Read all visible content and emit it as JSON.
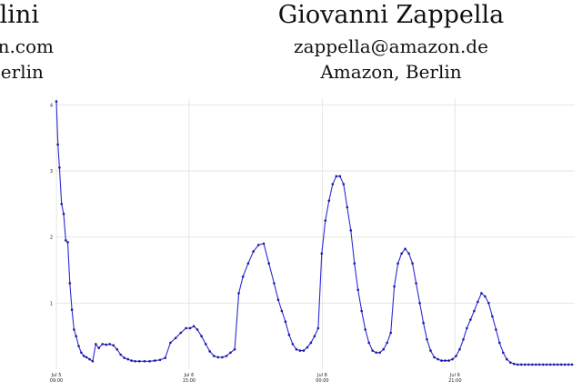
{
  "authors": [
    {
      "name": "llini",
      "email": "zon.com",
      "affiliation": "Berlin"
    },
    {
      "name": "Giovanni Zappella",
      "email": "zappella@amazon.de",
      "affiliation": "Amazon, Berlin"
    }
  ],
  "chart_data": {
    "type": "line",
    "title": "",
    "xlabel": "",
    "ylabel": "",
    "line_color": "#2b2bd6",
    "marker_color": "#1a1aa0",
    "grid": true,
    "ylim": [
      0,
      4.1
    ],
    "xlim": [
      0,
      100
    ],
    "yticks": [
      1,
      2,
      3,
      4
    ],
    "xticks": [
      {
        "x": 0,
        "line1": "Jul 5",
        "line2": "09:00"
      },
      {
        "x": 25.6,
        "line1": "Jul 6",
        "line2": "15:00"
      },
      {
        "x": 51.3,
        "line1": "Jul 8",
        "line2": "00:00"
      },
      {
        "x": 76.9,
        "line1": "Jul 9",
        "line2": "21:00"
      }
    ],
    "series": [
      {
        "x": [
          0.0,
          0.3,
          0.6,
          1.0,
          1.4,
          1.8,
          2.2,
          2.6,
          3.0,
          3.4,
          3.8,
          4.3,
          4.8,
          5.3,
          5.8,
          6.4,
          7.0,
          7.6,
          8.2,
          8.9,
          9.6,
          10.3,
          11.0,
          11.7,
          12.4,
          13.1,
          13.8,
          14.5,
          15.2,
          16.0,
          17.0,
          18.0,
          19.0,
          20.0,
          21.0,
          22.0,
          23.0,
          24.0,
          25.0,
          25.8,
          26.5,
          27.2,
          28.0,
          28.8,
          29.6,
          30.4,
          31.2,
          32.0,
          32.8,
          33.6,
          34.4,
          35.2,
          36.0,
          37.0,
          38.0,
          39.0,
          40.0,
          41.0,
          42.0,
          42.8,
          43.5,
          44.2,
          44.9,
          45.6,
          46.3,
          47.0,
          47.7,
          48.4,
          49.1,
          49.8,
          50.5,
          51.2,
          51.9,
          52.6,
          53.3,
          54.0,
          54.7,
          55.4,
          56.1,
          56.8,
          57.5,
          58.2,
          58.9,
          59.6,
          60.3,
          61.0,
          61.7,
          62.4,
          63.1,
          63.8,
          64.5,
          65.2,
          65.9,
          66.6,
          67.3,
          68.0,
          68.7,
          69.4,
          70.1,
          70.8,
          71.5,
          72.2,
          72.9,
          73.6,
          74.3,
          75.0,
          75.7,
          76.4,
          77.1,
          77.8,
          78.5,
          79.2,
          79.9,
          80.6,
          81.3,
          82.0,
          82.7,
          83.4,
          84.1,
          84.8,
          85.5,
          86.2,
          86.9,
          87.6,
          88.3,
          89.0,
          89.7,
          90.4,
          91.1,
          91.8,
          92.5,
          93.2,
          93.9,
          94.6,
          95.3,
          96.0,
          96.7,
          97.4,
          98.1,
          98.8,
          99.5
        ],
        "values": [
          4.05,
          3.4,
          3.05,
          2.5,
          2.35,
          1.95,
          1.92,
          1.3,
          0.9,
          0.6,
          0.5,
          0.35,
          0.25,
          0.2,
          0.18,
          0.15,
          0.12,
          0.38,
          0.32,
          0.38,
          0.37,
          0.38,
          0.36,
          0.3,
          0.22,
          0.17,
          0.15,
          0.13,
          0.12,
          0.12,
          0.12,
          0.12,
          0.13,
          0.14,
          0.17,
          0.4,
          0.47,
          0.55,
          0.62,
          0.62,
          0.65,
          0.6,
          0.5,
          0.38,
          0.27,
          0.2,
          0.18,
          0.18,
          0.2,
          0.25,
          0.3,
          1.15,
          1.4,
          1.6,
          1.78,
          1.88,
          1.9,
          1.6,
          1.3,
          1.05,
          0.88,
          0.72,
          0.52,
          0.38,
          0.3,
          0.28,
          0.28,
          0.33,
          0.4,
          0.5,
          0.62,
          1.75,
          2.25,
          2.55,
          2.8,
          2.92,
          2.92,
          2.8,
          2.45,
          2.1,
          1.6,
          1.2,
          0.88,
          0.6,
          0.4,
          0.28,
          0.25,
          0.25,
          0.3,
          0.4,
          0.55,
          1.25,
          1.6,
          1.75,
          1.82,
          1.75,
          1.6,
          1.3,
          1.0,
          0.7,
          0.45,
          0.28,
          0.18,
          0.15,
          0.13,
          0.13,
          0.13,
          0.15,
          0.2,
          0.3,
          0.45,
          0.62,
          0.75,
          0.88,
          1.02,
          1.15,
          1.1,
          1.0,
          0.8,
          0.6,
          0.4,
          0.25,
          0.15,
          0.1,
          0.08,
          0.07,
          0.07,
          0.07,
          0.07,
          0.07,
          0.07,
          0.07,
          0.07,
          0.07,
          0.07,
          0.07,
          0.07,
          0.07,
          0.07,
          0.07,
          0.07
        ]
      }
    ]
  }
}
